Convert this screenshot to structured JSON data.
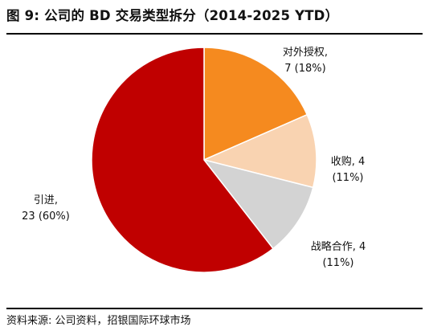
{
  "title": "图 9: 公司的 BD 交易类型拆分（2014-2025 YTD）",
  "source": "资料来源: 公司资料，招银国际环球市场",
  "chart_data": {
    "type": "pie",
    "title": "图 9: 公司的 BD 交易类型拆分（2014-2025 YTD）",
    "start_angle_deg": 90,
    "direction": "clockwise",
    "slices": [
      {
        "name": "对外授权",
        "count": 7,
        "percent": 18,
        "label_lines": [
          "对外授权,",
          "7 (18%)"
        ],
        "color": "#F58A1F"
      },
      {
        "name": "收购",
        "count": 4,
        "percent": 11,
        "label_lines": [
          "收购, 4",
          "(11%)"
        ],
        "color": "#F9D3B1"
      },
      {
        "name": "战略合作",
        "count": 4,
        "percent": 11,
        "label_lines": [
          "战略合作, 4",
          "(11%)"
        ],
        "color": "#D3D3D3"
      },
      {
        "name": "引进",
        "count": 23,
        "percent": 60,
        "label_lines": [
          "引进,",
          "23 (60%)"
        ],
        "color": "#C00000"
      }
    ]
  }
}
